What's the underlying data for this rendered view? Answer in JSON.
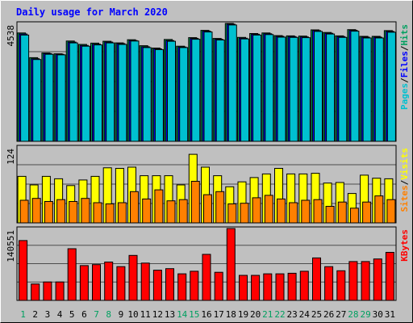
{
  "chart_data": {
    "type": "bar",
    "title": "Daily usage for March 2020",
    "categories": [
      "1",
      "2",
      "3",
      "4",
      "5",
      "6",
      "7",
      "8",
      "9",
      "10",
      "11",
      "12",
      "13",
      "14",
      "15",
      "16",
      "17",
      "18",
      "19",
      "20",
      "21",
      "22",
      "23",
      "24",
      "25",
      "26",
      "27",
      "28",
      "29",
      "30",
      "31"
    ],
    "weekend_days": [
      "1",
      "7",
      "8",
      "14",
      "15",
      "21",
      "22",
      "28",
      "29"
    ],
    "panels": [
      {
        "id": "hits",
        "ymax_label": "4538",
        "ylim": [
          0,
          4538
        ],
        "legend": [
          "Pages",
          "/",
          "Files",
          "/",
          "Hits"
        ],
        "legend_colors": [
          "#00c0d0",
          "#000000",
          "#0000ff",
          "#000000",
          "#00a060"
        ],
        "series": [
          {
            "name": "Hits",
            "color": "#00a060",
            "values": [
              4170,
              3220,
              3400,
              3370,
              3860,
              3730,
              3780,
              3850,
              3790,
              3910,
              3680,
              3590,
              3920,
              3660,
              3990,
              4270,
              3960,
              4538,
              4000,
              4150,
              4170,
              4070,
              4060,
              4050,
              4290,
              4190,
              4060,
              4300,
              4040,
              4040,
              4260
            ]
          },
          {
            "name": "Files",
            "color": "#0000ff",
            "values": [
              4130,
              3180,
              3380,
              3350,
              3820,
              3690,
              3740,
              3820,
              3760,
              3880,
              3640,
              3560,
              3880,
              3630,
              3960,
              4240,
              3930,
              4510,
              3970,
              4120,
              4140,
              4040,
              4030,
              4020,
              4260,
              4160,
              4030,
              4270,
              4010,
              4010,
              4230
            ]
          },
          {
            "name": "Pages",
            "color": "#00c0d0",
            "values": [
              4090,
              3150,
              3350,
              3330,
              3790,
              3660,
              3710,
              3790,
              3730,
              3860,
              3610,
              3530,
              3850,
              3610,
              3930,
              4210,
              3900,
              4480,
              3940,
              4090,
              4110,
              4010,
              4000,
              3990,
              4230,
              4130,
              4000,
              4240,
              3980,
              3980,
              4200
            ]
          }
        ]
      },
      {
        "id": "visits",
        "ymax_label": "124",
        "ylim": [
          0,
          124
        ],
        "legend": [
          "Sites",
          "/",
          "Visits"
        ],
        "legend_colors": [
          "#ff8000",
          "#000000",
          "#ffff00"
        ],
        "series": [
          {
            "name": "Visits",
            "color": "#ffff00",
            "values": [
              76,
              62,
              76,
              72,
              61,
              70,
              76,
              90,
              89,
              91,
              77,
              77,
              77,
              62,
              112,
              91,
              77,
              59,
              67,
              74,
              80,
              89,
              80,
              80,
              81,
              65,
              66,
              48,
              78,
              73,
              72
            ]
          },
          {
            "name": "Sites",
            "color": "#ff8000",
            "values": [
              37,
              40,
              35,
              38,
              35,
              40,
              33,
              31,
              33,
              51,
              39,
              54,
              36,
              38,
              68,
              46,
              51,
              31,
              32,
              41,
              45,
              39,
              33,
              37,
              38,
              27,
              34,
              24,
              34,
              44,
              38
            ]
          }
        ]
      },
      {
        "id": "kbytes",
        "ymax_label": "140551",
        "ylim": [
          0,
          140551
        ],
        "legend": [
          "KBytes"
        ],
        "legend_colors": [
          "#ff0000"
        ],
        "series": [
          {
            "name": "KBytes",
            "color": "#ff0000",
            "values": [
              117000,
              32000,
              36000,
              36000,
              101000,
              68000,
              70000,
              75000,
              66000,
              88000,
              73000,
              59000,
              62000,
              52000,
              57000,
              90000,
              55000,
              140551,
              49000,
              49000,
              52000,
              52000,
              53000,
              57000,
              83000,
              66000,
              58000,
              76000,
              76000,
              81000,
              94000
            ]
          }
        ]
      }
    ],
    "grid": true,
    "xlabel": "",
    "ylabel": ""
  }
}
